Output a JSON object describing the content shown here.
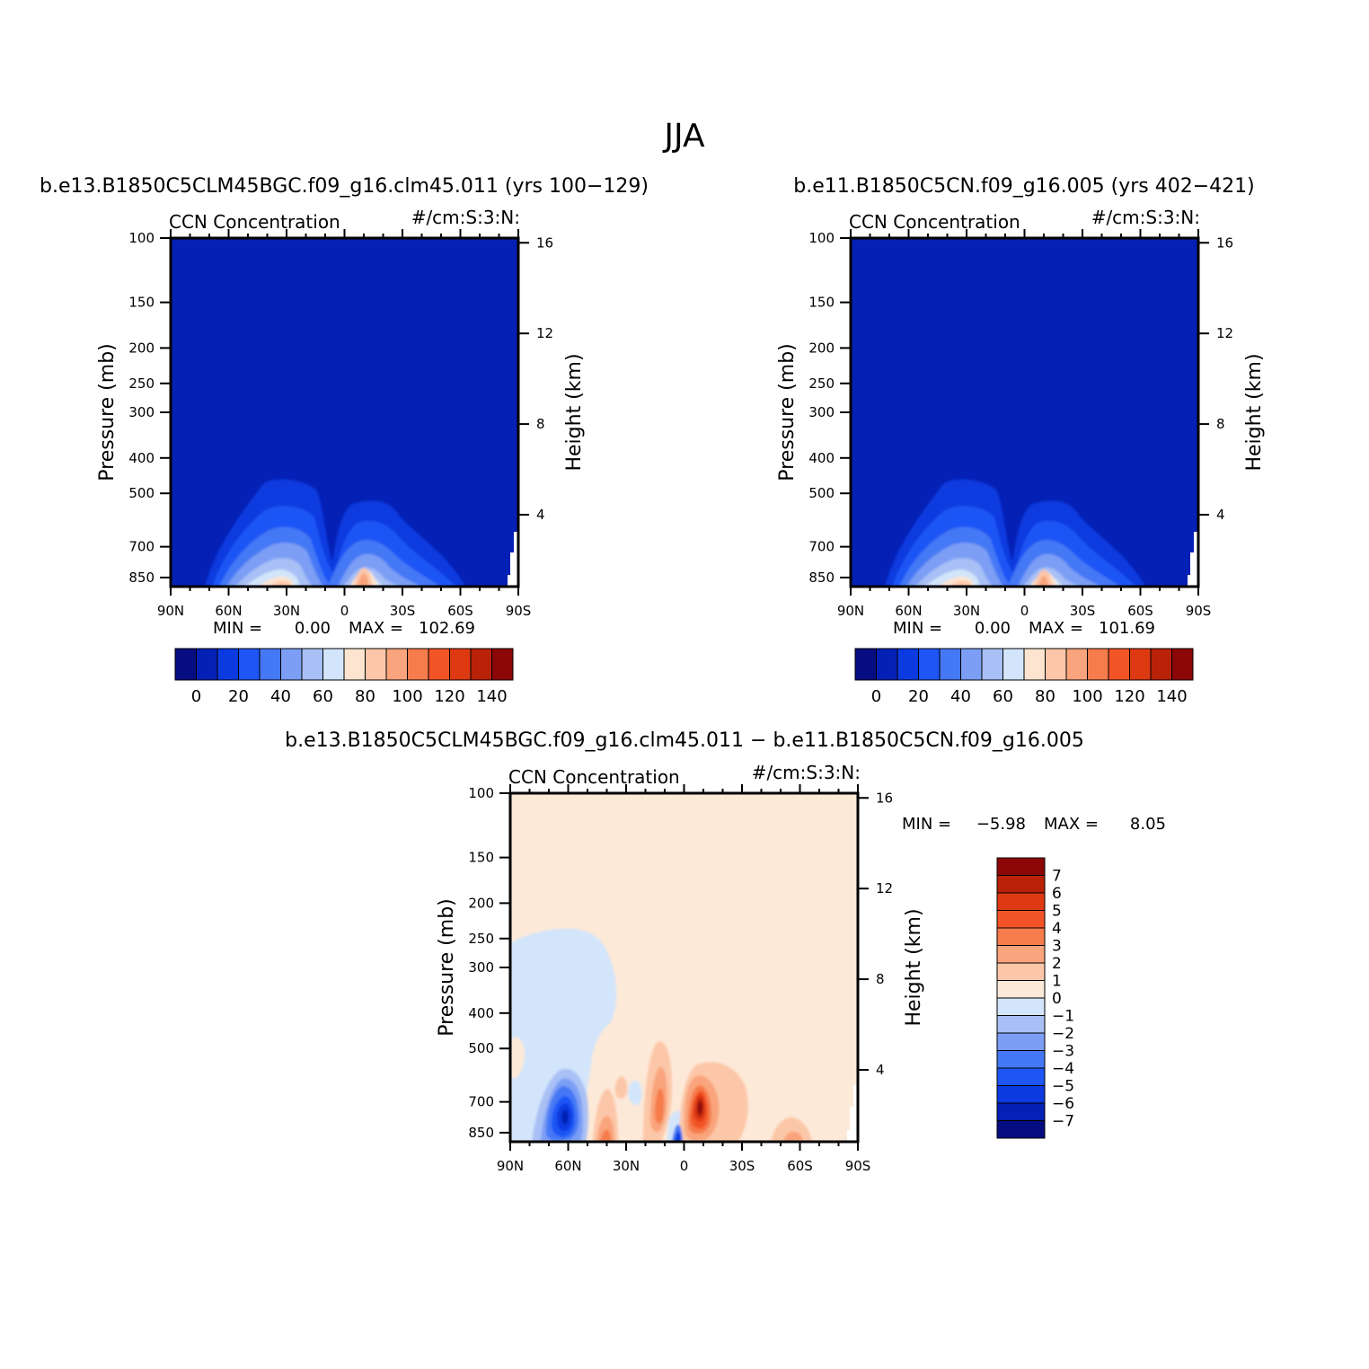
{
  "page_title": "JJA",
  "colors": {
    "abs_levels": [
      "#050d80",
      "#0520b4",
      "#0a3ae0",
      "#1e55f5",
      "#4478f5",
      "#7c9ef5",
      "#a8c0f5",
      "#d2e5fb",
      "#fde4d0",
      "#fcc7a8",
      "#f9a47c",
      "#f67c4c",
      "#f25427",
      "#de3a12",
      "#b92208",
      "#8b0707"
    ],
    "diff_levels": [
      "#050d80",
      "#0520b4",
      "#0a3ae0",
      "#1e55f5",
      "#4478f5",
      "#7c9ef5",
      "#a8c0f5",
      "#d2e5fb",
      "#fde9d8",
      "#fcc7a8",
      "#f9a47c",
      "#f67c4c",
      "#f25427",
      "#de3a12",
      "#b92208",
      "#8b0707"
    ]
  },
  "panels": [
    {
      "run_title": "b.e13.B1850C5CLM45BGC.f09_g16.clm45.011 (yrs 100-129)",
      "variable": "CCN Concentration",
      "units": "#/cm:S:3:N:",
      "ylabel": "Pressure (mb)",
      "ylabel_right": "Height (km)",
      "min_label": "MIN =",
      "min_value": "0.00",
      "max_label": "MAX =",
      "max_value": "102.69",
      "colorbar_labels": [
        "0",
        "20",
        "40",
        "60",
        "80",
        "100",
        "120",
        "140"
      ]
    },
    {
      "run_title": "b.e11.B1850C5CN.f09_g16.005 (yrs 402-421)",
      "variable": "CCN Concentration",
      "units": "#/cm:S:3:N:",
      "ylabel": "Pressure (mb)",
      "ylabel_right": "Height (km)",
      "min_label": "MIN =",
      "min_value": "0.00",
      "max_label": "MAX =",
      "max_value": "101.69",
      "colorbar_labels": [
        "0",
        "20",
        "40",
        "60",
        "80",
        "100",
        "120",
        "140"
      ]
    },
    {
      "run_title": "b.e13.B1850C5CLM45BGC.f09_g16.clm45.011 - b.e11.B1850C5CN.f09_g16.005",
      "variable": "CCN Concentration",
      "units": "#/cm:S:3:N:",
      "ylabel": "Pressure (mb)",
      "ylabel_right": "Height (km)",
      "min_label": "MIN =",
      "min_value": "-5.98",
      "max_label": "MAX =",
      "max_value": "8.05",
      "colorbar_labels": [
        "7",
        "6",
        "5",
        "4",
        "3",
        "2",
        "1",
        "0",
        "-1",
        "-2",
        "-3",
        "-4",
        "-5",
        "-6",
        "-7"
      ]
    }
  ],
  "chart_data": [
    {
      "type": "heatmap",
      "title": "b.e13.B1850C5CLM45BGC.f09_g16.clm45.011 (yrs 100-129)",
      "xlabel": "",
      "ylabel": "Pressure (mb)",
      "ylabel_right": "Height (km)",
      "x_ticks": [
        "90N",
        "60N",
        "30N",
        "0",
        "30S",
        "60S",
        "90S"
      ],
      "x_range": [
        90,
        -90
      ],
      "y_ticks": [
        100,
        150,
        200,
        250,
        300,
        400,
        500,
        700,
        850
      ],
      "y_range_mb": [
        100,
        900
      ],
      "y_scale": "log",
      "right_ticks_km": [
        4,
        8,
        12,
        16
      ],
      "min": 0.0,
      "max": 102.69,
      "levels": [
        0,
        10,
        20,
        30,
        40,
        50,
        60,
        70,
        80,
        90,
        100,
        110,
        120,
        130,
        140
      ]
    },
    {
      "type": "heatmap",
      "title": "b.e11.B1850C5CN.f09_g16.005 (yrs 402-421)",
      "xlabel": "",
      "ylabel": "Pressure (mb)",
      "ylabel_right": "Height (km)",
      "x_ticks": [
        "90N",
        "60N",
        "30N",
        "0",
        "30S",
        "60S",
        "90S"
      ],
      "x_range": [
        90,
        -90
      ],
      "y_ticks": [
        100,
        150,
        200,
        250,
        300,
        400,
        500,
        700,
        850
      ],
      "y_range_mb": [
        100,
        900
      ],
      "y_scale": "log",
      "right_ticks_km": [
        4,
        8,
        12,
        16
      ],
      "min": 0.0,
      "max": 101.69,
      "levels": [
        0,
        10,
        20,
        30,
        40,
        50,
        60,
        70,
        80,
        90,
        100,
        110,
        120,
        130,
        140
      ]
    },
    {
      "type": "heatmap",
      "title": "b.e13.B1850C5CLM45BGC.f09_g16.clm45.011 - b.e11.B1850C5CN.f09_g16.005",
      "xlabel": "",
      "ylabel": "Pressure (mb)",
      "ylabel_right": "Height (km)",
      "x_ticks": [
        "90N",
        "60N",
        "30N",
        "0",
        "30S",
        "60S",
        "90S"
      ],
      "x_range": [
        90,
        -90
      ],
      "y_ticks": [
        100,
        150,
        200,
        250,
        300,
        400,
        500,
        700,
        850
      ],
      "y_range_mb": [
        100,
        900
      ],
      "y_scale": "log",
      "right_ticks_km": [
        4,
        8,
        12,
        16
      ],
      "min": -5.98,
      "max": 8.05,
      "levels": [
        -7,
        -6,
        -5,
        -4,
        -3,
        -2,
        -1,
        0,
        1,
        2,
        3,
        4,
        5,
        6,
        7
      ]
    }
  ]
}
